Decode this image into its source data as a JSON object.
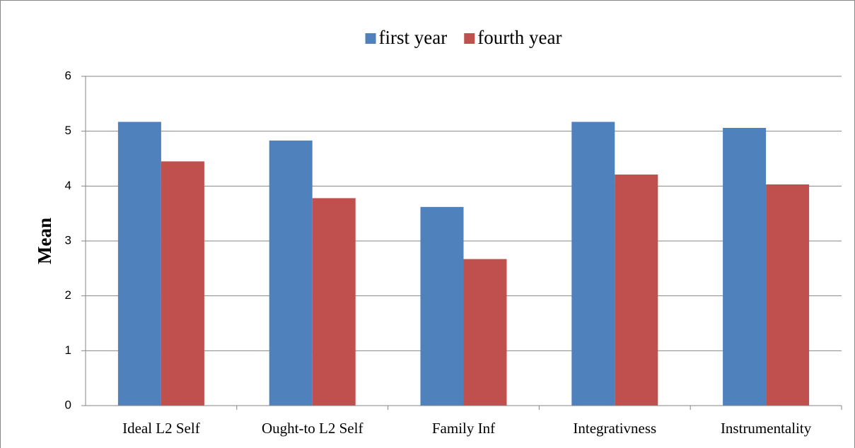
{
  "chart_data": {
    "type": "bar",
    "y_label": "Mean",
    "categories": [
      "Ideal L2 Self",
      "Ought-to L2 Self",
      "Family Inf",
      "Integrativness",
      "Instrumentality"
    ],
    "series": [
      {
        "name": "first year",
        "color": "#4f81bd",
        "values": [
          5.17,
          4.83,
          3.62,
          5.17,
          5.06
        ]
      },
      {
        "name": "fourth year",
        "color": "#c0504d",
        "values": [
          4.45,
          3.78,
          2.67,
          4.21,
          4.03
        ]
      }
    ],
    "ylim": [
      0,
      6
    ],
    "yticks": [
      0,
      1,
      2,
      3,
      4,
      5,
      6
    ],
    "grid": true,
    "legend": "top"
  }
}
